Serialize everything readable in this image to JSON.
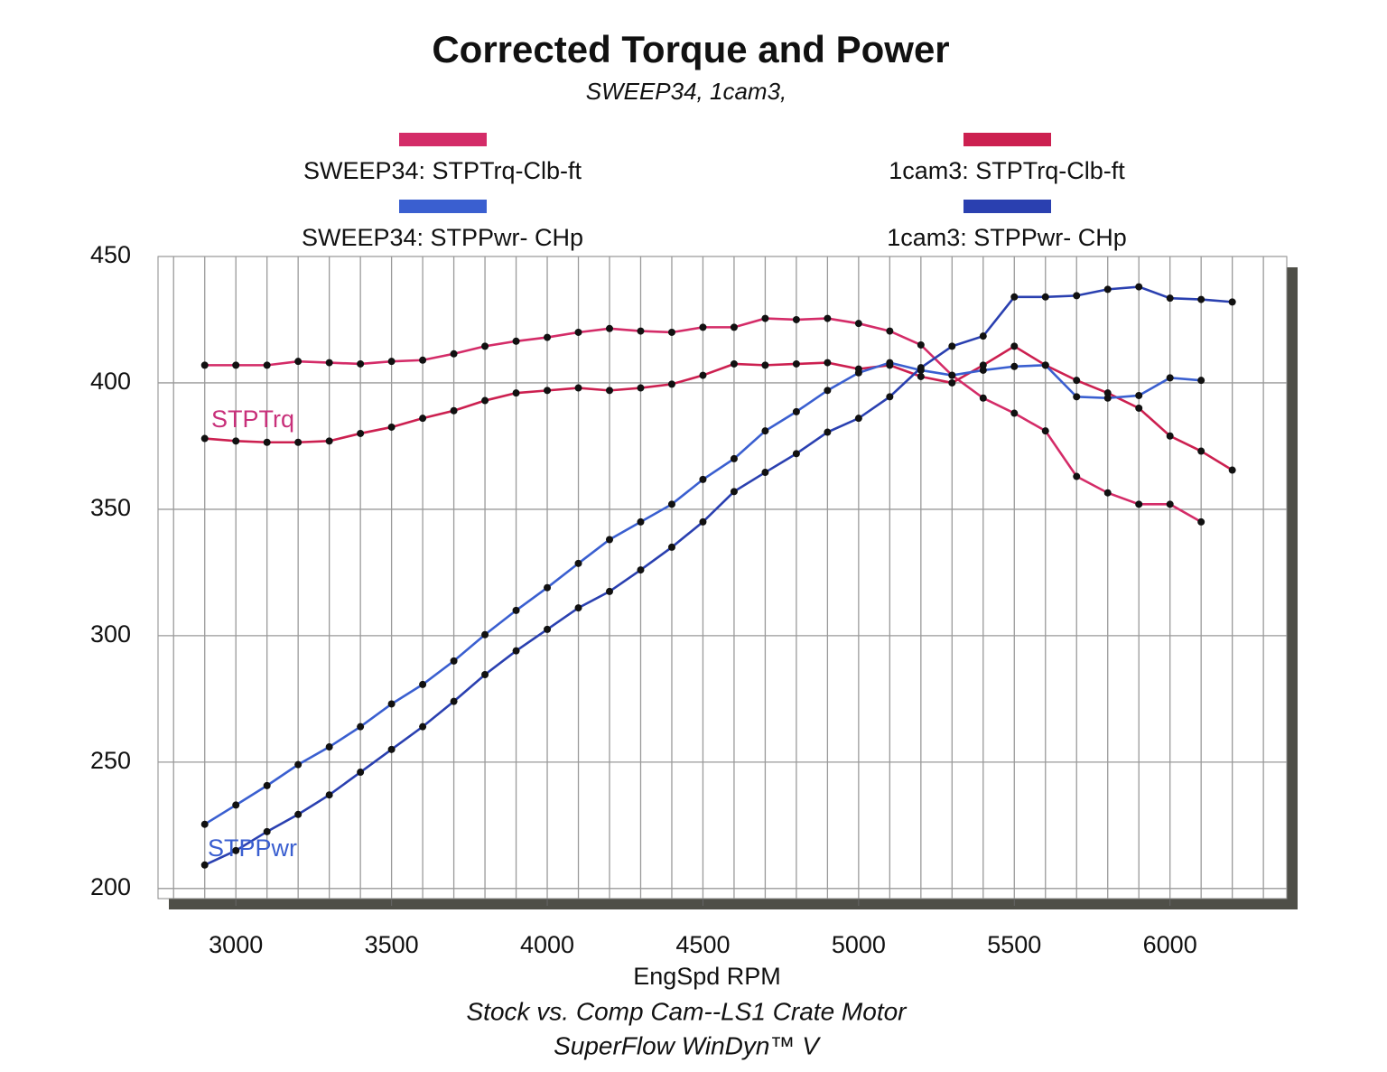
{
  "chart_data": {
    "type": "line",
    "title": "Corrected Torque and Power",
    "subtitle": "SWEEP34, 1cam3,",
    "x_label": "EngSpd  RPM",
    "notes": [
      "Stock vs. Comp Cam--LS1 Crate Motor",
      "SuperFlow WinDyn™ V"
    ],
    "annotations": [
      {
        "text": "STPTrq",
        "color": "#c8307a"
      },
      {
        "text": "STPPwr",
        "color": "#3a5fd0"
      }
    ],
    "x": [
      2900,
      3000,
      3100,
      3200,
      3300,
      3400,
      3500,
      3600,
      3700,
      3800,
      3900,
      4000,
      4100,
      4200,
      4300,
      4400,
      4500,
      4600,
      4700,
      4800,
      4900,
      5000,
      5100,
      5200,
      5300,
      5400,
      5500,
      5600,
      5700,
      5800,
      5900,
      6000,
      6100,
      6200
    ],
    "series": [
      {
        "name": "SWEEP34: STPTrq-Clb-ft",
        "color": "#d42c68",
        "values": [
          407,
          407,
          407,
          408.5,
          408,
          407.5,
          408.5,
          409,
          411.5,
          414.5,
          416.5,
          418,
          420,
          421.5,
          420.5,
          420,
          422,
          422,
          425.5,
          425,
          425.5,
          423.5,
          420.5,
          415,
          403,
          394,
          388,
          381,
          363,
          356.5,
          352,
          352,
          345,
          null
        ]
      },
      {
        "name": "1cam3: STPTrq-Clb-ft",
        "color": "#cc2050",
        "values": [
          378,
          377,
          376.5,
          376.5,
          377,
          380,
          382.5,
          386,
          389,
          393,
          396,
          397,
          398,
          397,
          398,
          399.5,
          403,
          407.5,
          407,
          407.5,
          408,
          405.5,
          407,
          402.5,
          400,
          407,
          414.5,
          407,
          401,
          396,
          390,
          379,
          373,
          365.5
        ]
      },
      {
        "name": "SWEEP34: STPPwr- CHp",
        "color": "#3a5fd0",
        "values": [
          225.4,
          233,
          240.7,
          249,
          256,
          264,
          273,
          280.7,
          290,
          300.4,
          310,
          319,
          328.6,
          338,
          345,
          352,
          361.8,
          370,
          381,
          388.6,
          397,
          404,
          408,
          405,
          403,
          405,
          406.5,
          407,
          394.5,
          394,
          395,
          402,
          401,
          null
        ]
      },
      {
        "name": "1cam3: STPPwr- CHp",
        "color": "#2a40b0",
        "values": [
          209.3,
          215,
          222.5,
          229.3,
          237,
          246,
          255,
          264,
          274,
          284.6,
          294,
          302.5,
          311,
          317.5,
          326,
          335,
          345,
          357,
          364.6,
          372,
          380.5,
          386,
          394.5,
          406,
          414.5,
          418.5,
          434,
          434,
          434.5,
          437,
          438,
          433.5,
          433,
          432
        ]
      }
    ],
    "xlim": [
      2750,
      6375
    ],
    "xticks": [
      3000,
      3500,
      4000,
      4500,
      5000,
      5500,
      6000
    ],
    "x_minor_ticks": [
      2800,
      2900,
      3000,
      3100,
      3200,
      3300,
      3400,
      3500,
      3600,
      3700,
      3800,
      3900,
      4000,
      4100,
      4200,
      4300,
      4400,
      4500,
      4600,
      4700,
      4800,
      4900,
      5000,
      5100,
      5200,
      5300,
      5400,
      5500,
      5600,
      5700,
      5800,
      5900,
      6000,
      6100,
      6200,
      6300
    ],
    "ylim": [
      196,
      450
    ],
    "yticks": [
      200,
      250,
      300,
      350,
      400,
      450
    ],
    "grid": true,
    "markers": true
  }
}
